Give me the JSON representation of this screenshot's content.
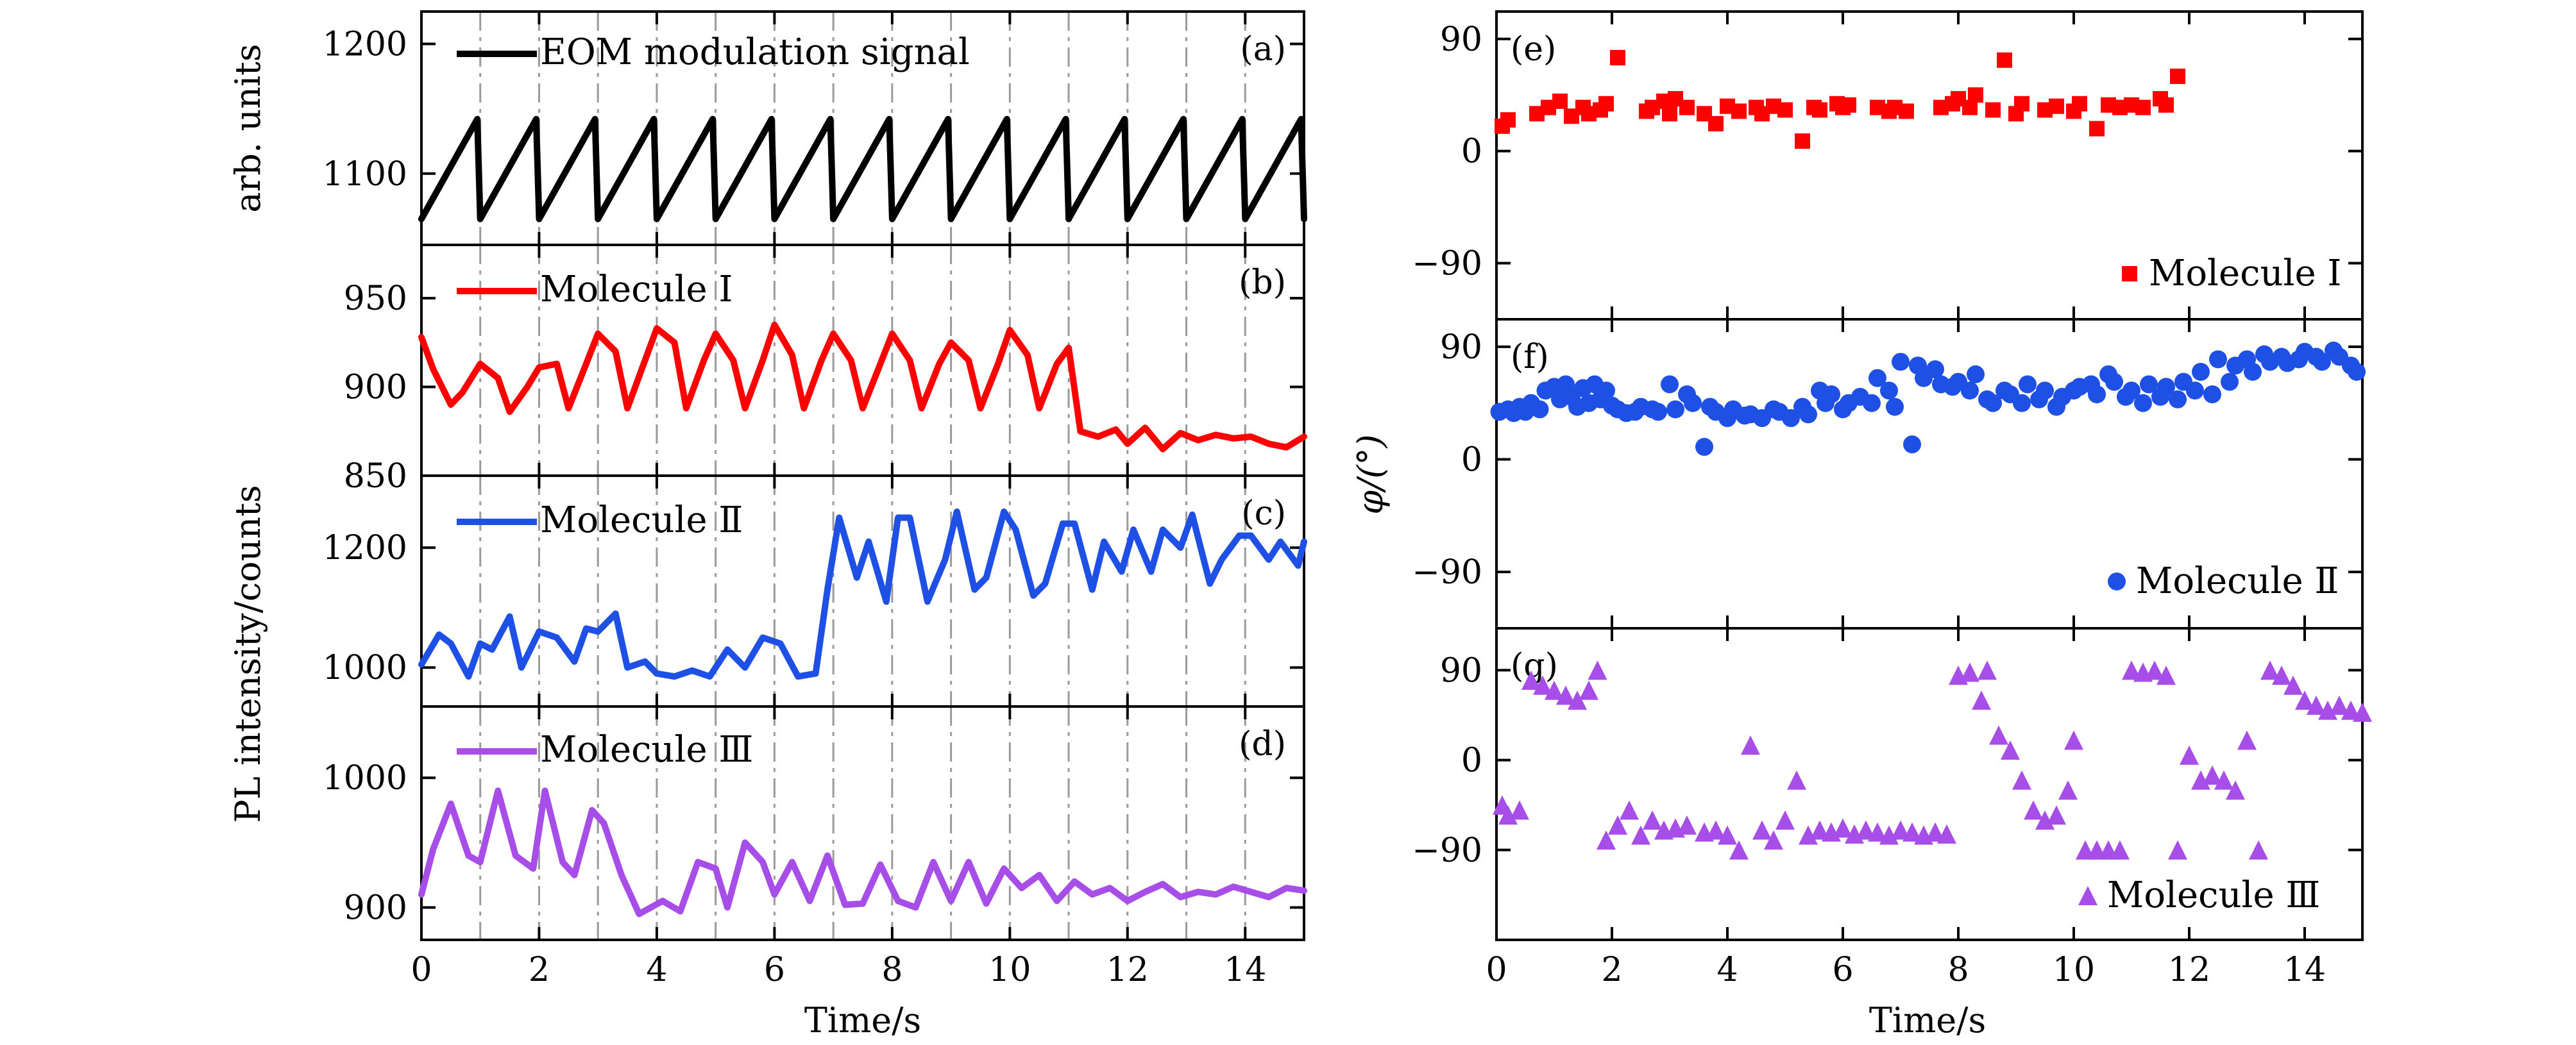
{
  "figure": {
    "left": {
      "y_axis_label": "PL intensity/counts",
      "x_axis_label": "Time/s",
      "x_ticks": [
        "0",
        "2",
        "4",
        "6",
        "8",
        "10",
        "12",
        "14"
      ]
    },
    "right": {
      "y_axis_label": "φ/(°)",
      "x_axis_label": "Time/s",
      "x_ticks": [
        "0",
        "2",
        "4",
        "6",
        "8",
        "10",
        "12",
        "14"
      ]
    }
  },
  "chart_data": [
    {
      "id": "a",
      "type": "line",
      "panel_label": "(a)",
      "ylabel": "arb. units",
      "xlim": [
        0,
        15
      ],
      "ylim": [
        1045,
        1225
      ],
      "yticks": [
        1100,
        1200
      ],
      "ytick_labels": [
        "1100",
        "1200"
      ],
      "gridlines_x": [
        1,
        2,
        3,
        4,
        5,
        6,
        7,
        8,
        9,
        10,
        11,
        12,
        13,
        14
      ],
      "series": [
        {
          "name": "EOM modulation signal",
          "color": "#000000",
          "x": [
            0,
            0.95,
            1.0,
            1.95,
            2.0,
            2.95,
            3.0,
            3.95,
            4.0,
            4.95,
            5.0,
            5.95,
            6.0,
            6.95,
            7.0,
            7.95,
            8.0,
            8.95,
            9.0,
            9.95,
            10.0,
            10.95,
            11.0,
            11.95,
            12.0,
            12.95,
            13.0,
            13.95,
            14.0,
            14.95,
            15.0
          ],
          "y": [
            1065,
            1142,
            1065,
            1142,
            1065,
            1142,
            1065,
            1142,
            1065,
            1142,
            1065,
            1142,
            1065,
            1142,
            1065,
            1142,
            1065,
            1142,
            1065,
            1142,
            1065,
            1142,
            1065,
            1142,
            1065,
            1142,
            1065,
            1142,
            1065,
            1142,
            1065
          ]
        }
      ]
    },
    {
      "id": "b",
      "type": "line",
      "panel_label": "(b)",
      "xlim": [
        0,
        15
      ],
      "ylim": [
        850,
        980
      ],
      "yticks": [
        850,
        900,
        950
      ],
      "ytick_labels": [
        "850",
        "900",
        "950"
      ],
      "gridlines_x": [
        1,
        2,
        3,
        4,
        5,
        6,
        7,
        8,
        9,
        10,
        11,
        12,
        13,
        14
      ],
      "series": [
        {
          "name": "Molecule Ⅰ",
          "color": "#ff0000",
          "x": [
            0,
            0.2,
            0.5,
            0.7,
            1.0,
            1.3,
            1.5,
            1.8,
            2.0,
            2.3,
            2.5,
            2.8,
            3.0,
            3.3,
            3.5,
            3.8,
            4.0,
            4.3,
            4.5,
            4.8,
            5.0,
            5.3,
            5.5,
            5.8,
            6.0,
            6.3,
            6.5,
            6.8,
            7.0,
            7.3,
            7.5,
            7.8,
            8.0,
            8.3,
            8.5,
            8.8,
            9.0,
            9.3,
            9.5,
            9.8,
            10.0,
            10.3,
            10.5,
            10.8,
            11.0,
            11.2,
            11.5,
            11.8,
            12.0,
            12.3,
            12.6,
            12.9,
            13.2,
            13.5,
            13.8,
            14.1,
            14.4,
            14.7,
            15.0
          ],
          "y": [
            928,
            910,
            890,
            897,
            913,
            905,
            886,
            900,
            911,
            913,
            888,
            913,
            930,
            920,
            888,
            915,
            933,
            925,
            888,
            915,
            930,
            915,
            888,
            915,
            935,
            918,
            888,
            915,
            930,
            915,
            888,
            913,
            930,
            915,
            888,
            913,
            925,
            915,
            888,
            913,
            932,
            918,
            888,
            913,
            922,
            875,
            872,
            876,
            868,
            877,
            865,
            874,
            870,
            873,
            871,
            872,
            868,
            866,
            872
          ]
        }
      ]
    },
    {
      "id": "c",
      "type": "line",
      "panel_label": "(c)",
      "xlim": [
        0,
        15
      ],
      "ylim": [
        935,
        1320
      ],
      "yticks": [
        1000,
        1200
      ],
      "ytick_labels": [
        "1000",
        "1200"
      ],
      "gridlines_x": [
        1,
        2,
        3,
        4,
        5,
        6,
        7,
        8,
        9,
        10,
        11,
        12,
        13,
        14
      ],
      "series": [
        {
          "name": "Molecule Ⅱ",
          "color": "#1e50e6",
          "x": [
            0,
            0.3,
            0.5,
            0.8,
            1.0,
            1.2,
            1.5,
            1.7,
            2.0,
            2.3,
            2.6,
            2.8,
            3.0,
            3.3,
            3.5,
            3.8,
            4.0,
            4.3,
            4.6,
            4.9,
            5.2,
            5.5,
            5.8,
            6.1,
            6.4,
            6.7,
            6.9,
            7.1,
            7.4,
            7.6,
            7.9,
            8.1,
            8.3,
            8.6,
            8.9,
            9.1,
            9.4,
            9.6,
            9.9,
            10.1,
            10.4,
            10.6,
            10.9,
            11.1,
            11.4,
            11.6,
            11.9,
            12.1,
            12.4,
            12.6,
            12.9,
            13.1,
            13.4,
            13.6,
            13.9,
            14.1,
            14.4,
            14.6,
            14.9,
            15.0
          ],
          "y": [
            1005,
            1055,
            1040,
            985,
            1040,
            1030,
            1085,
            1000,
            1060,
            1050,
            1010,
            1065,
            1060,
            1090,
            1000,
            1010,
            990,
            985,
            995,
            985,
            1030,
            1000,
            1050,
            1040,
            985,
            990,
            1130,
            1250,
            1150,
            1210,
            1110,
            1250,
            1250,
            1110,
            1180,
            1260,
            1130,
            1150,
            1260,
            1230,
            1120,
            1140,
            1240,
            1240,
            1130,
            1210,
            1160,
            1230,
            1160,
            1230,
            1200,
            1255,
            1140,
            1180,
            1220,
            1220,
            1180,
            1210,
            1170,
            1210
          ]
        }
      ]
    },
    {
      "id": "d",
      "type": "line",
      "panel_label": "(d)",
      "xlim": [
        0,
        15
      ],
      "ylim": [
        875,
        1055
      ],
      "yticks": [
        900,
        1000
      ],
      "ytick_labels": [
        "900",
        "1000"
      ],
      "gridlines_x": [
        1,
        2,
        3,
        4,
        5,
        6,
        7,
        8,
        9,
        10,
        11,
        12,
        13,
        14
      ],
      "series": [
        {
          "name": "Molecule Ⅲ",
          "color": "#a84ee8",
          "x": [
            0,
            0.2,
            0.5,
            0.8,
            1.0,
            1.3,
            1.6,
            1.9,
            2.1,
            2.4,
            2.6,
            2.9,
            3.1,
            3.4,
            3.7,
            3.9,
            4.1,
            4.4,
            4.7,
            5.0,
            5.2,
            5.5,
            5.8,
            6.0,
            6.3,
            6.6,
            6.9,
            7.2,
            7.5,
            7.8,
            8.1,
            8.4,
            8.7,
            9.0,
            9.3,
            9.6,
            9.9,
            10.2,
            10.5,
            10.8,
            11.1,
            11.4,
            11.7,
            12.0,
            12.3,
            12.6,
            12.9,
            13.2,
            13.5,
            13.8,
            14.1,
            14.4,
            14.7,
            15.0
          ],
          "y": [
            910,
            945,
            980,
            940,
            935,
            990,
            940,
            930,
            990,
            935,
            925,
            975,
            965,
            925,
            895,
            900,
            905,
            897,
            935,
            930,
            900,
            950,
            935,
            910,
            935,
            905,
            940,
            902,
            903,
            933,
            905,
            900,
            935,
            905,
            935,
            903,
            930,
            915,
            925,
            905,
            920,
            910,
            915,
            905,
            912,
            918,
            908,
            912,
            910,
            916,
            912,
            908,
            915,
            913
          ]
        }
      ]
    },
    {
      "id": "e",
      "type": "scatter",
      "panel_label": "(e)",
      "marker": "square",
      "xlim": [
        0,
        15
      ],
      "ylim": [
        -135,
        112
      ],
      "yticks": [
        -90,
        0,
        90
      ],
      "ytick_labels": [
        "−90",
        "0",
        "90"
      ],
      "series": [
        {
          "name": "Molecule Ⅰ",
          "color": "#ff0000",
          "x": [
            0.1,
            0.2,
            0.7,
            0.9,
            1.1,
            1.3,
            1.5,
            1.6,
            1.8,
            1.9,
            2.1,
            2.6,
            2.7,
            2.9,
            3.0,
            3.1,
            3.3,
            3.6,
            3.8,
            4.0,
            4.2,
            4.5,
            4.6,
            4.8,
            5.0,
            5.3,
            5.5,
            5.6,
            5.9,
            6.0,
            6.1,
            6.6,
            6.8,
            6.9,
            7.1,
            7.7,
            7.9,
            8.0,
            8.2,
            8.3,
            8.6,
            8.8,
            9.0,
            9.1,
            9.5,
            9.7,
            10.0,
            10.1,
            10.4,
            10.6,
            10.8,
            11.0,
            11.2,
            11.5,
            11.6,
            11.8
          ],
          "y": [
            20,
            25,
            30,
            35,
            40,
            28,
            35,
            30,
            33,
            38,
            75,
            32,
            35,
            40,
            30,
            42,
            35,
            30,
            22,
            36,
            32,
            35,
            30,
            36,
            33,
            8,
            35,
            33,
            38,
            35,
            37,
            35,
            32,
            35,
            32,
            35,
            38,
            42,
            35,
            45,
            33,
            73,
            30,
            38,
            33,
            36,
            32,
            38,
            18,
            37,
            35,
            37,
            35,
            42,
            37,
            60
          ]
        }
      ]
    },
    {
      "id": "f",
      "type": "scatter",
      "panel_label": "(f)",
      "marker": "circle",
      "xlim": [
        0,
        15
      ],
      "ylim": [
        -135,
        112
      ],
      "yticks": [
        -90,
        0,
        90
      ],
      "ytick_labels": [
        "−90",
        "0",
        "90"
      ],
      "series": [
        {
          "name": "Molecule Ⅱ",
          "color": "#1e50e6",
          "x": [
            0.05,
            0.2,
            0.3,
            0.4,
            0.5,
            0.6,
            0.75,
            0.85,
            1.0,
            1.1,
            1.2,
            1.3,
            1.4,
            1.5,
            1.6,
            1.7,
            1.8,
            1.9,
            2.0,
            2.1,
            2.25,
            2.4,
            2.5,
            2.7,
            2.8,
            3.0,
            3.1,
            3.3,
            3.4,
            3.6,
            3.7,
            3.8,
            4.0,
            4.1,
            4.3,
            4.4,
            4.6,
            4.8,
            4.9,
            5.1,
            5.3,
            5.4,
            5.6,
            5.7,
            5.8,
            6.0,
            6.1,
            6.3,
            6.5,
            6.6,
            6.8,
            6.9,
            7.0,
            7.2,
            7.3,
            7.4,
            7.6,
            7.7,
            7.9,
            8.0,
            8.2,
            8.3,
            8.5,
            8.6,
            8.8,
            8.9,
            9.1,
            9.2,
            9.4,
            9.5,
            9.7,
            9.8,
            10.0,
            10.1,
            10.3,
            10.4,
            10.6,
            10.7,
            10.9,
            11.0,
            11.2,
            11.3,
            11.5,
            11.6,
            11.8,
            11.9,
            12.1,
            12.2,
            12.4,
            12.5,
            12.7,
            12.8,
            13.0,
            13.1,
            13.3,
            13.4,
            13.6,
            13.7,
            13.9,
            14.0,
            14.2,
            14.3,
            14.5,
            14.6,
            14.8,
            14.9
          ],
          "y": [
            38,
            40,
            37,
            42,
            38,
            45,
            40,
            55,
            58,
            48,
            60,
            50,
            42,
            57,
            45,
            60,
            48,
            55,
            43,
            40,
            37,
            38,
            42,
            40,
            38,
            60,
            40,
            52,
            45,
            10,
            42,
            38,
            33,
            40,
            35,
            36,
            33,
            40,
            38,
            33,
            42,
            36,
            55,
            45,
            52,
            40,
            45,
            50,
            45,
            65,
            55,
            42,
            78,
            12,
            75,
            65,
            72,
            60,
            58,
            62,
            55,
            68,
            48,
            45,
            55,
            52,
            45,
            60,
            48,
            55,
            42,
            50,
            55,
            58,
            60,
            52,
            68,
            62,
            50,
            55,
            45,
            60,
            50,
            58,
            48,
            62,
            55,
            70,
            52,
            80,
            62,
            75,
            80,
            70,
            84,
            78,
            82,
            77,
            80,
            86,
            82,
            78,
            87,
            82,
            75,
            70
          ]
        }
      ]
    },
    {
      "id": "g",
      "type": "scatter",
      "panel_label": "(g)",
      "marker": "triangle",
      "xlim": [
        0,
        15
      ],
      "ylim": [
        -180,
        132
      ],
      "yticks": [
        -90,
        0,
        90
      ],
      "ytick_labels": [
        "−90",
        "0",
        "90"
      ],
      "series": [
        {
          "name": "Molecule Ⅲ",
          "color": "#a84ee8",
          "x": [
            0.1,
            0.2,
            0.4,
            0.6,
            0.8,
            1.0,
            1.2,
            1.4,
            1.6,
            1.75,
            1.9,
            2.1,
            2.3,
            2.5,
            2.7,
            2.9,
            3.1,
            3.3,
            3.6,
            3.8,
            4.0,
            4.2,
            4.4,
            4.6,
            4.8,
            5.0,
            5.2,
            5.4,
            5.6,
            5.8,
            6.0,
            6.2,
            6.4,
            6.6,
            6.8,
            7.0,
            7.2,
            7.4,
            7.6,
            7.8,
            8.0,
            8.2,
            8.4,
            8.5,
            8.7,
            8.9,
            9.1,
            9.3,
            9.5,
            9.7,
            9.9,
            10.0,
            10.2,
            10.4,
            10.6,
            10.8,
            11.0,
            11.2,
            11.4,
            11.6,
            11.8,
            12.0,
            12.2,
            12.4,
            12.6,
            12.8,
            13.0,
            13.2,
            13.4,
            13.6,
            13.8,
            14.0,
            14.2,
            14.4,
            14.6,
            14.8,
            15.0
          ],
          "y": [
            -45,
            -55,
            -50,
            80,
            75,
            70,
            65,
            60,
            70,
            90,
            -80,
            -65,
            -50,
            -75,
            -60,
            -70,
            -68,
            -65,
            -72,
            -70,
            -75,
            -90,
            15,
            -70,
            -80,
            -60,
            -20,
            -75,
            -70,
            -72,
            -68,
            -74,
            -70,
            -72,
            -75,
            -70,
            -72,
            -75,
            -72,
            -74,
            85,
            88,
            60,
            90,
            25,
            10,
            -20,
            -50,
            -60,
            -55,
            -30,
            20,
            -90,
            -90,
            -90,
            -90,
            90,
            88,
            90,
            85,
            -90,
            5,
            -20,
            -15,
            -20,
            -30,
            20,
            -90,
            90,
            85,
            75,
            60,
            55,
            50,
            55,
            50,
            48
          ]
        }
      ]
    }
  ]
}
